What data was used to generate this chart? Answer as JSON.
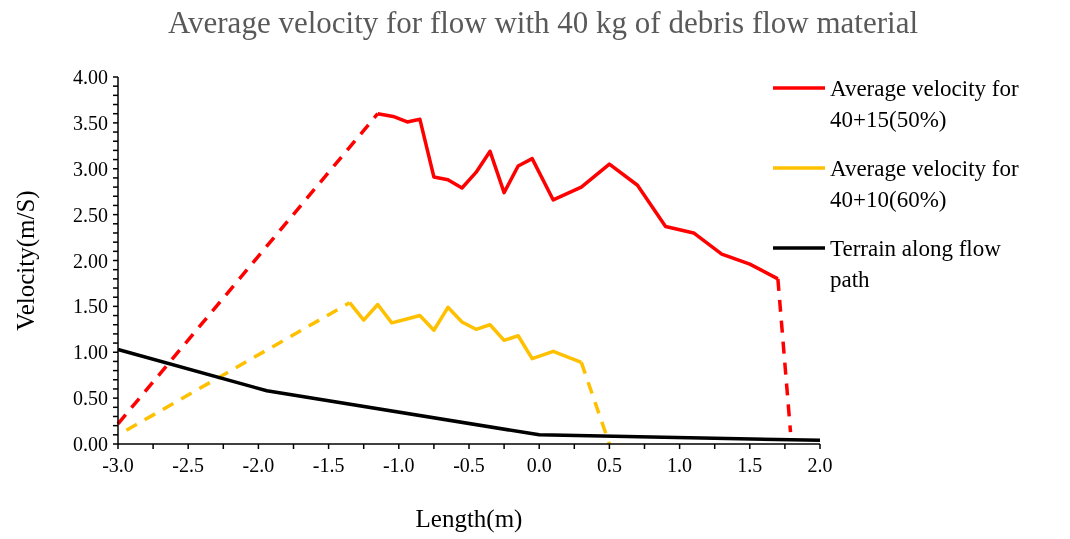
{
  "chart_data": {
    "type": "line",
    "title": "Average velocity for flow with 40 kg of debris flow material",
    "xlabel": "Length(m)",
    "ylabel": "Velocity(m/S)",
    "xlim": [
      -3,
      2
    ],
    "ylim": [
      0,
      4
    ],
    "xticks": [
      {
        "value": -3,
        "label": "-3.0"
      },
      {
        "value": -2.75,
        "label": null
      },
      {
        "value": -2.5,
        "label": "-2.5"
      },
      {
        "value": -2.25,
        "label": null
      },
      {
        "value": -2,
        "label": "-2.0"
      },
      {
        "value": -1.75,
        "label": null
      },
      {
        "value": -1.5,
        "label": "-1.5"
      },
      {
        "value": -1.25,
        "label": null
      },
      {
        "value": -1,
        "label": "-1.0"
      },
      {
        "value": -0.75,
        "label": null
      },
      {
        "value": -0.5,
        "label": "-0.5"
      },
      {
        "value": -0.25,
        "label": null
      },
      {
        "value": 0,
        "label": "0.0"
      },
      {
        "value": 0.25,
        "label": null
      },
      {
        "value": 0.5,
        "label": "0.5"
      },
      {
        "value": 0.75,
        "label": null
      },
      {
        "value": 1,
        "label": "1.0"
      },
      {
        "value": 1.25,
        "label": null
      },
      {
        "value": 1.5,
        "label": "1.5"
      },
      {
        "value": 1.75,
        "label": null
      },
      {
        "value": 2,
        "label": "2.0"
      }
    ],
    "yticks": [
      {
        "value": 0,
        "label": "0.00"
      },
      {
        "value": 0.1,
        "label": null
      },
      {
        "value": 0.2,
        "label": null
      },
      {
        "value": 0.3,
        "label": null
      },
      {
        "value": 0.4,
        "label": null
      },
      {
        "value": 0.5,
        "label": "0.50"
      },
      {
        "value": 0.6,
        "label": null
      },
      {
        "value": 0.7,
        "label": null
      },
      {
        "value": 0.8,
        "label": null
      },
      {
        "value": 0.9,
        "label": null
      },
      {
        "value": 1,
        "label": "1.00"
      },
      {
        "value": 1.1,
        "label": null
      },
      {
        "value": 1.2,
        "label": null
      },
      {
        "value": 1.3,
        "label": null
      },
      {
        "value": 1.4,
        "label": null
      },
      {
        "value": 1.5,
        "label": "1.50"
      },
      {
        "value": 1.6,
        "label": null
      },
      {
        "value": 1.7,
        "label": null
      },
      {
        "value": 1.8,
        "label": null
      },
      {
        "value": 1.9,
        "label": null
      },
      {
        "value": 2,
        "label": "2.00"
      },
      {
        "value": 2.1,
        "label": null
      },
      {
        "value": 2.2,
        "label": null
      },
      {
        "value": 2.3,
        "label": null
      },
      {
        "value": 2.4,
        "label": null
      },
      {
        "value": 2.5,
        "label": "2.50"
      },
      {
        "value": 2.6,
        "label": null
      },
      {
        "value": 2.7,
        "label": null
      },
      {
        "value": 2.8,
        "label": null
      },
      {
        "value": 2.9,
        "label": null
      },
      {
        "value": 3,
        "label": "3.00"
      },
      {
        "value": 3.1,
        "label": null
      },
      {
        "value": 3.2,
        "label": null
      },
      {
        "value": 3.3,
        "label": null
      },
      {
        "value": 3.4,
        "label": null
      },
      {
        "value": 3.5,
        "label": "3.50"
      },
      {
        "value": 3.6,
        "label": null
      },
      {
        "value": 3.7,
        "label": null
      },
      {
        "value": 3.8,
        "label": null
      },
      {
        "value": 3.9,
        "label": null
      },
      {
        "value": 4,
        "label": "4.00"
      }
    ],
    "grid": false,
    "legend": "right",
    "marker": "none",
    "series": [
      {
        "name": "Average velocity for 40+15(50%)",
        "color": "#ff0000",
        "line_style": "solid",
        "x": [
          -1.15,
          -1.04,
          -0.94,
          -0.85,
          -0.75,
          -0.65,
          -0.55,
          -0.45,
          -0.35,
          -0.25,
          -0.15,
          -0.05,
          0.1,
          0.3,
          0.5,
          0.7,
          0.9,
          1.1,
          1.3,
          1.5,
          1.7
        ],
        "values": [
          3.6,
          3.57,
          3.51,
          3.54,
          2.91,
          2.88,
          2.79,
          2.96,
          3.19,
          2.74,
          3.03,
          3.11,
          2.66,
          2.8,
          3.05,
          2.82,
          2.37,
          2.3,
          2.07,
          1.96,
          1.8
        ]
      },
      {
        "color": "#ff0000",
        "line_style": "dashed",
        "x": [
          -3.0,
          -1.15
        ],
        "values": [
          0.22,
          3.6
        ]
      },
      {
        "color": "#ff0000",
        "line_style": "dashed",
        "x": [
          1.7,
          1.79
        ],
        "values": [
          1.8,
          0.13
        ]
      },
      {
        "name": "Average velocity for 40+10(60%)",
        "color": "#ffc000",
        "line_style": "solid",
        "x": [
          -1.35,
          -1.25,
          -1.15,
          -1.05,
          -0.95,
          -0.85,
          -0.75,
          -0.65,
          -0.55,
          -0.45,
          -0.35,
          -0.25,
          -0.15,
          -0.05,
          0.1,
          0.3
        ],
        "values": [
          1.54,
          1.35,
          1.52,
          1.32,
          1.36,
          1.4,
          1.24,
          1.49,
          1.33,
          1.25,
          1.3,
          1.13,
          1.18,
          0.93,
          1.01,
          0.89
        ]
      },
      {
        "color": "#ffc000",
        "line_style": "dashed",
        "x": [
          -2.94,
          -1.35
        ],
        "values": [
          0.15,
          1.54
        ]
      },
      {
        "color": "#ffc000",
        "line_style": "dashed",
        "x": [
          0.3,
          0.5
        ],
        "values": [
          0.89,
          0
        ]
      },
      {
        "name": "Terrain along flow path",
        "color": "#000000",
        "line_style": "solid",
        "x": [
          -3.0,
          -1.94,
          0.0,
          2.0
        ],
        "values": [
          1.03,
          0.58,
          0.1,
          0.04
        ]
      }
    ]
  }
}
